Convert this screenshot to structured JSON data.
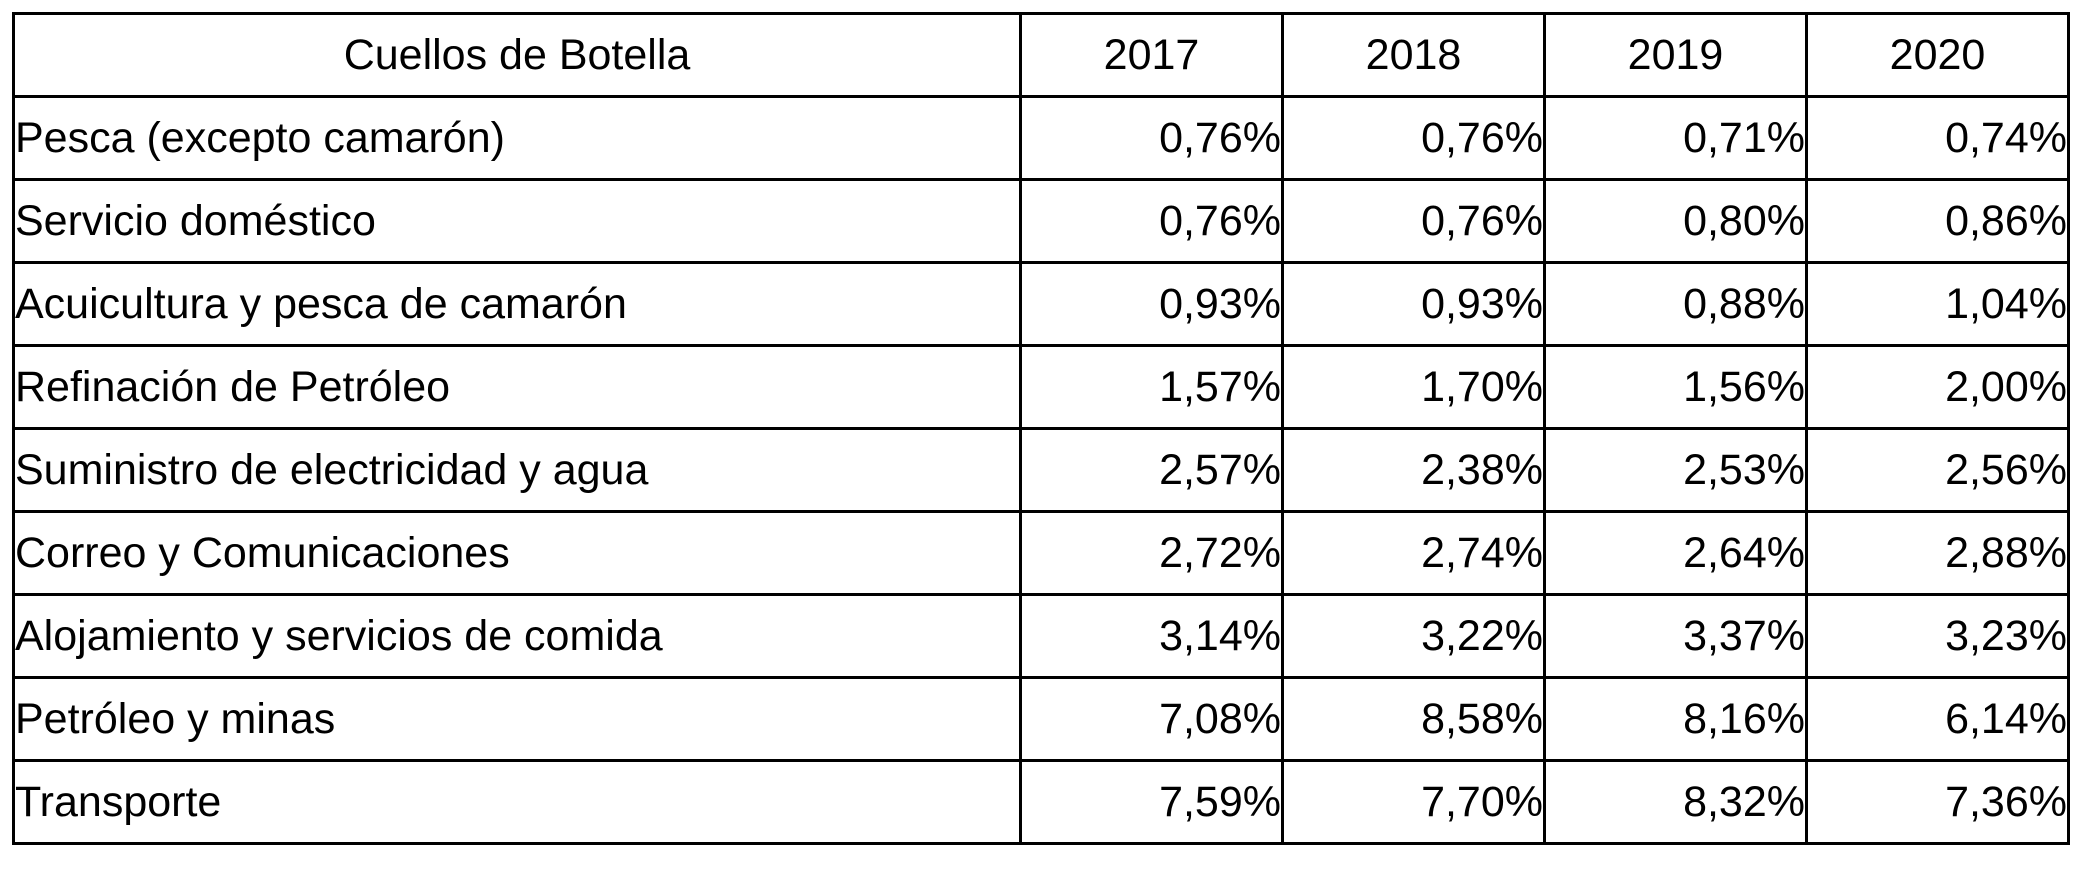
{
  "table": {
    "header": {
      "label": "Cuellos de Botella",
      "years": [
        "2017",
        "2018",
        "2019",
        "2020"
      ]
    },
    "rows": [
      {
        "label": "Pesca (excepto camarón)",
        "values": [
          "0,76%",
          "0,76%",
          "0,71%",
          "0,74%"
        ]
      },
      {
        "label": "Servicio doméstico",
        "values": [
          "0,76%",
          "0,76%",
          "0,80%",
          "0,86%"
        ]
      },
      {
        "label": "Acuicultura y pesca de camarón",
        "values": [
          "0,93%",
          "0,93%",
          "0,88%",
          "1,04%"
        ]
      },
      {
        "label": "Refinación de Petróleo",
        "values": [
          "1,57%",
          "1,70%",
          "1,56%",
          "2,00%"
        ]
      },
      {
        "label": "Suministro de electricidad y agua",
        "values": [
          "2,57%",
          "2,38%",
          "2,53%",
          "2,56%"
        ]
      },
      {
        "label": "Correo y Comunicaciones",
        "values": [
          "2,72%",
          "2,74%",
          "2,64%",
          "2,88%"
        ]
      },
      {
        "label": "Alojamiento y servicios de comida",
        "values": [
          "3,14%",
          "3,22%",
          "3,37%",
          "3,23%"
        ]
      },
      {
        "label": "Petróleo y minas",
        "values": [
          "7,08%",
          "8,58%",
          "8,16%",
          "6,14%"
        ]
      },
      {
        "label": "Transporte",
        "values": [
          "7,59%",
          "7,70%",
          "8,32%",
          "7,36%"
        ]
      }
    ]
  }
}
